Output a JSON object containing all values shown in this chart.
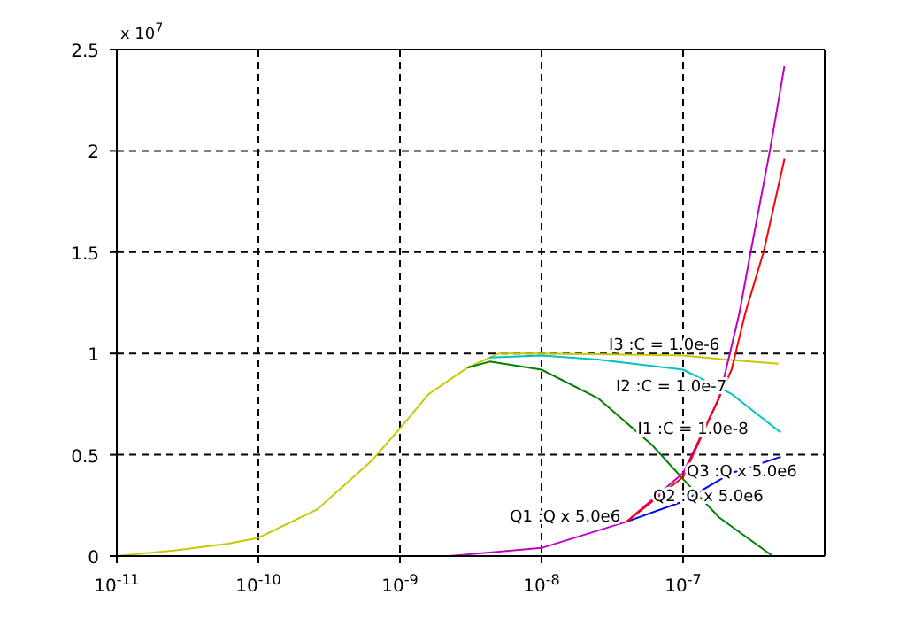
{
  "chart_data": {
    "type": "line",
    "log": "x",
    "grid": true,
    "xlim": [
      1e-11,
      1e-06
    ],
    "xticks": [
      {
        "value": 1e-11,
        "label": "10$^{-11}$"
      },
      {
        "value": 1e-10,
        "label": "10$^{-10}$"
      },
      {
        "value": 1e-09,
        "label": "10$^{-9}$"
      },
      {
        "value": 1e-08,
        "label": "10$^{-8}$"
      },
      {
        "value": 1e-07,
        "label": "10$^{-7}$"
      }
    ],
    "ylim": [
      0,
      2.5
    ],
    "yticks": [
      0,
      0.5,
      1,
      1.5,
      2,
      2.5
    ],
    "annotations": [
      "x 10$^{7}$"
    ],
    "series": [
      {
        "name": "I3 :C = 1.0e-6",
        "color": "#c8c800",
        "x": [
          1e-11,
          2.7e-11,
          6e-11,
          1e-10,
          2.6e-10,
          6.3e-10,
          1e-09,
          1.6e-09,
          3e-09,
          5e-09,
          1e-08,
          1e-07,
          2e-07,
          4.7e-07
        ],
        "values": [
          0,
          0.03,
          0.06,
          0.09,
          0.23,
          0.47,
          0.63,
          0.8,
          0.93,
          1.0,
          1.0,
          0.99,
          0.97,
          0.95
        ]
      },
      {
        "name": "I2 :C = 1.0e-7",
        "color": "#00c0c0",
        "x": [
          4.3e-09,
          1e-08,
          2.5e-08,
          1e-07,
          2.2e-07,
          4.9e-07
        ],
        "values": [
          0.98,
          0.99,
          0.97,
          0.92,
          0.8,
          0.61
        ]
      },
      {
        "name": "I1 :C = 1.0e-8",
        "color": "#008000",
        "x": [
          3e-09,
          4.3e-09,
          1e-08,
          2.5e-08,
          6e-08,
          1e-07,
          1.8e-07,
          4.3e-07
        ],
        "values": [
          0.93,
          0.96,
          0.92,
          0.78,
          0.55,
          0.38,
          0.19,
          0
        ]
      },
      {
        "name": "Q3 :Q x 5.0e6",
        "color": "#0000ff",
        "x": [
          4e-08,
          1e-07,
          2.2e-07,
          4.9e-07
        ],
        "values": [
          0.17,
          0.27,
          0.41,
          0.49
        ]
      },
      {
        "name": "Q2 :Q x 5.0e6",
        "color": "#c000c0",
        "x": [
          1e-11,
          2.2e-09,
          1e-08,
          4e-08,
          1e-07,
          1.8e-07,
          2.5e-07,
          3e-07,
          4.1e-07,
          5.2e-07
        ],
        "values": [
          0,
          0,
          0.04,
          0.17,
          0.41,
          0.78,
          1.2,
          1.5,
          2.0,
          2.42
        ]
      },
      {
        "name": "Q1 :Q x 5.0e6",
        "color": "#ff0000",
        "x": [
          4e-08,
          1e-07,
          2.2e-07,
          2.75e-07,
          3.7e-07,
          5.2e-07
        ],
        "values": [
          0.17,
          0.39,
          0.92,
          1.2,
          1.5,
          1.96
        ]
      }
    ]
  }
}
